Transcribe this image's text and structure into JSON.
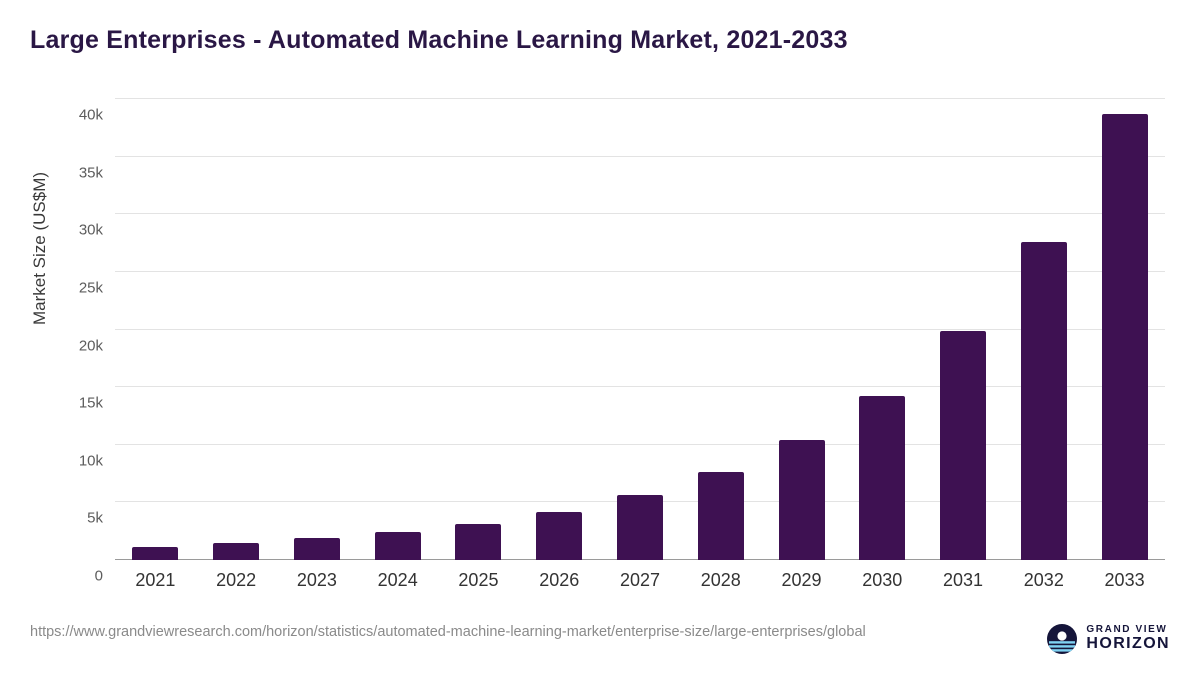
{
  "title": "Large Enterprises - Automated Machine Learning Market, 2021-2033",
  "chart_data": {
    "type": "bar",
    "categories": [
      "2021",
      "2022",
      "2023",
      "2024",
      "2025",
      "2026",
      "2027",
      "2028",
      "2029",
      "2030",
      "2031",
      "2032",
      "2033"
    ],
    "values": [
      1100,
      1500,
      1900,
      2450,
      3150,
      4200,
      5650,
      7650,
      10450,
      14250,
      19850,
      27600,
      38700
    ],
    "title": "Large Enterprises - Automated Machine Learning Market, 2021-2033",
    "xlabel": "",
    "ylabel": "Market Size (US$M)",
    "ylim": [
      0,
      40000
    ],
    "yticks": [
      0,
      5000,
      10000,
      15000,
      20000,
      25000,
      30000,
      35000,
      40000
    ],
    "ytick_labels": [
      "0",
      "5k",
      "10k",
      "15k",
      "20k",
      "25k",
      "30k",
      "35k",
      "40k"
    ],
    "bar_color": "#3e1152",
    "grid": true,
    "legend": "none"
  },
  "footer": {
    "source_url": "https://www.grandviewresearch.com/horizon/statistics/automated-machine-learning-market/enterprise-size/large-enterprises/global",
    "logo_top": "GRAND VIEW",
    "logo_bottom": "HORIZON"
  },
  "colors": {
    "bar": "#3e1152",
    "title_text": "#2a1745",
    "gridline": "#e3e3e3",
    "logo_navy": "#15153a",
    "logo_blue": "#7fd2f2"
  }
}
